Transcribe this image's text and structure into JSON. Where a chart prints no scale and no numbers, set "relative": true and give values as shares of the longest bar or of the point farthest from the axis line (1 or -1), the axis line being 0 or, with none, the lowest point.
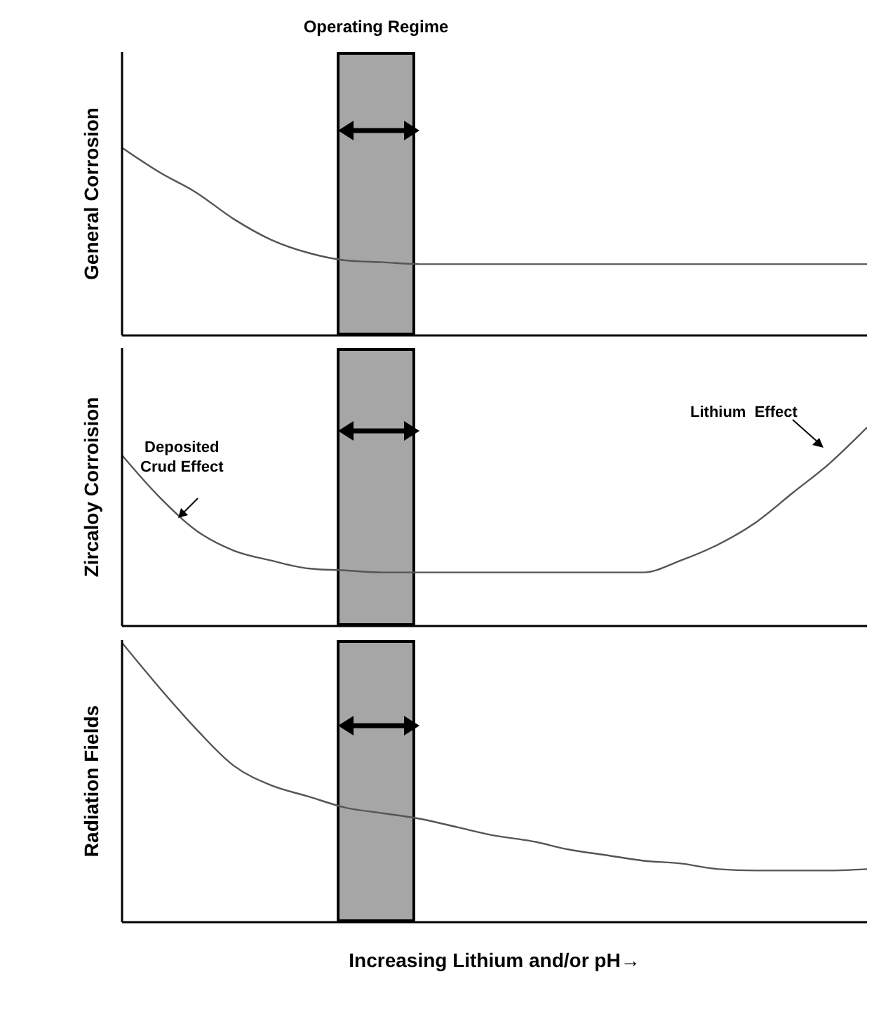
{
  "chart_data": [
    {
      "type": "line",
      "title": "Operating Regime",
      "ylabel": "General Corrosion",
      "relative": true,
      "categories": [
        null,
        null,
        null,
        null,
        null,
        null,
        null,
        null,
        null,
        null,
        null,
        null,
        null,
        null,
        null,
        null,
        null,
        null,
        null,
        null,
        null
      ],
      "series": [
        {
          "color": "#555555",
          "values": [
            1.0,
            0.87,
            0.76,
            0.62,
            0.51,
            0.44,
            0.4,
            0.39,
            0.38,
            0.38,
            0.38,
            0.38,
            0.38,
            0.38,
            0.38,
            0.38,
            0.38,
            0.38,
            0.38,
            0.38,
            0.38
          ]
        }
      ],
      "grid": false,
      "legend": false,
      "marker": "none",
      "line_style": "solid"
    },
    {
      "type": "line",
      "ylabel": "Zircaloy Corroision",
      "relative": true,
      "categories": [
        null,
        null,
        null,
        null,
        null,
        null,
        null,
        null,
        null,
        null,
        null,
        null,
        null,
        null,
        null,
        null,
        null,
        null,
        null,
        null,
        null
      ],
      "series": [
        {
          "color": "#555555",
          "values": [
            0.86,
            0.65,
            0.48,
            0.38,
            0.33,
            0.29,
            0.28,
            0.27,
            0.27,
            0.27,
            0.27,
            0.27,
            0.27,
            0.27,
            0.27,
            0.33,
            0.41,
            0.52,
            0.67,
            0.82,
            1.0
          ]
        }
      ],
      "annotations": [
        "Deposited\nCrud Effect",
        "Lithium  Effect"
      ],
      "grid": false,
      "legend": false,
      "marker": "none",
      "line_style": "solid"
    },
    {
      "type": "line",
      "ylabel": "Radiation Fields",
      "xlabel": "Increasing Lithium and/or pH→",
      "relative": true,
      "categories": [
        null,
        null,
        null,
        null,
        null,
        null,
        null,
        null,
        null,
        null,
        null,
        null,
        null,
        null,
        null,
        null,
        null,
        null,
        null,
        null,
        null
      ],
      "series": [
        {
          "color": "#555555",
          "values": [
            1.0,
            0.84,
            0.69,
            0.56,
            0.49,
            0.45,
            0.41,
            0.39,
            0.37,
            0.34,
            0.31,
            0.29,
            0.26,
            0.24,
            0.22,
            0.21,
            0.19,
            0.185,
            0.185,
            0.185,
            0.19
          ]
        }
      ],
      "grid": false,
      "legend": false,
      "marker": "none",
      "line_style": "solid"
    }
  ]
}
